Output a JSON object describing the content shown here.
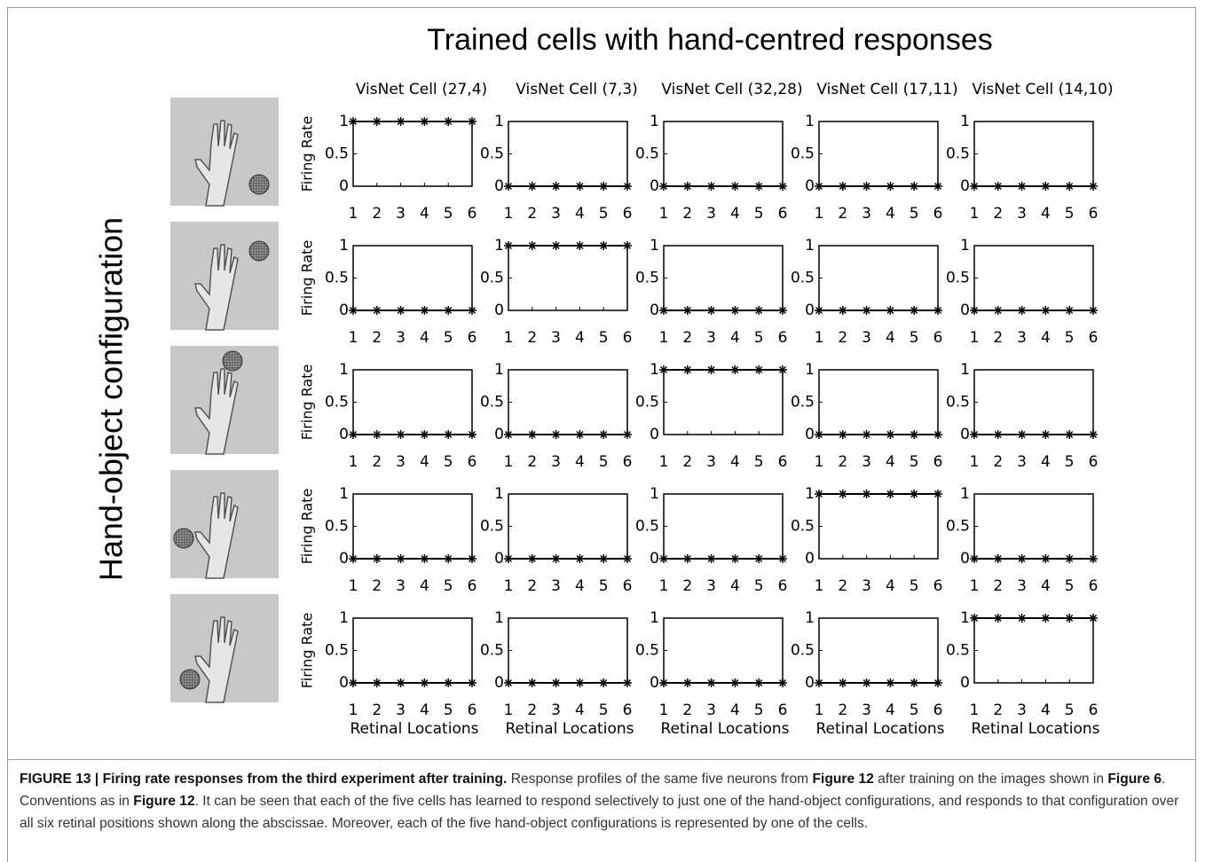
{
  "figure": {
    "title": "Trained cells with hand-centred responses",
    "side_label": "Hand-object configuration",
    "caption": [
      {
        "text": "FIGURE 13 | Firing rate responses from the third experiment after training.",
        "bold": true
      },
      {
        "text": " Response profiles of the same five neurons from ",
        "bold": false
      },
      {
        "text": "Figure 12",
        "bold": true
      },
      {
        "text": " after training on the images shown in ",
        "bold": false
      },
      {
        "text": "Figure 6",
        "bold": true
      },
      {
        "text": ". Conventions as in ",
        "bold": false
      },
      {
        "text": "Figure 12",
        "bold": true
      },
      {
        "text": ". It can be seen that each of the five cells has learned to respond selectively to just one of the hand-object configurations, and responds to that configuration over all six retinal positions shown along the abscissae. Moreover, each of the five hand-object configurations is represented by one of the cells.",
        "bold": false
      }
    ]
  },
  "chart_data": [
    {
      "type": "line",
      "title": "VisNet Cell (27,4)",
      "ylabel": "Firing Rate",
      "x": [
        1,
        2,
        3,
        4,
        5,
        6
      ],
      "values": [
        1,
        1,
        1,
        1,
        1,
        1
      ],
      "color": "#000000",
      "xlim": [
        1,
        6
      ],
      "ylim": [
        0,
        1
      ],
      "xticks": [
        1,
        2,
        3,
        4,
        5,
        6
      ],
      "yticks": [
        0,
        0.5,
        1
      ]
    },
    {
      "type": "line",
      "title": "VisNet Cell (7,3)",
      "x": [
        1,
        2,
        3,
        4,
        5,
        6
      ],
      "values": [
        0,
        0,
        0,
        0,
        0,
        0
      ],
      "color": "#000000",
      "xlim": [
        1,
        6
      ],
      "ylim": [
        0,
        1
      ],
      "xticks": [
        1,
        2,
        3,
        4,
        5,
        6
      ],
      "yticks": [
        0,
        0.5,
        1
      ]
    },
    {
      "type": "line",
      "title": "VisNet Cell (32,28)",
      "x": [
        1,
        2,
        3,
        4,
        5,
        6
      ],
      "values": [
        0,
        0,
        0,
        0,
        0,
        0
      ],
      "color": "#000000",
      "xlim": [
        1,
        6
      ],
      "ylim": [
        0,
        1
      ],
      "xticks": [
        1,
        2,
        3,
        4,
        5,
        6
      ],
      "yticks": [
        0,
        0.5,
        1
      ]
    },
    {
      "type": "line",
      "title": "VisNet Cell (17,11)",
      "x": [
        1,
        2,
        3,
        4,
        5,
        6
      ],
      "values": [
        0,
        0,
        0,
        0,
        0,
        0
      ],
      "color": "#000000",
      "xlim": [
        1,
        6
      ],
      "ylim": [
        0,
        1
      ],
      "xticks": [
        1,
        2,
        3,
        4,
        5,
        6
      ],
      "yticks": [
        0,
        0.5,
        1
      ]
    },
    {
      "type": "line",
      "title": "VisNet Cell (14,10)",
      "x": [
        1,
        2,
        3,
        4,
        5,
        6
      ],
      "values": [
        0,
        0,
        0,
        0,
        0,
        0
      ],
      "color": "#000000",
      "xlim": [
        1,
        6
      ],
      "ylim": [
        0,
        1
      ],
      "xticks": [
        1,
        2,
        3,
        4,
        5,
        6
      ],
      "yticks": [
        0,
        0.5,
        1
      ]
    },
    {
      "type": "line",
      "ylabel": "Firing Rate",
      "x": [
        1,
        2,
        3,
        4,
        5,
        6
      ],
      "values": [
        0,
        0,
        0,
        0,
        0,
        0
      ],
      "color": "#000000",
      "xlim": [
        1,
        6
      ],
      "ylim": [
        0,
        1
      ],
      "xticks": [
        1,
        2,
        3,
        4,
        5,
        6
      ],
      "yticks": [
        0,
        0.5,
        1
      ]
    },
    {
      "type": "line",
      "x": [
        1,
        2,
        3,
        4,
        5,
        6
      ],
      "values": [
        1,
        1,
        1,
        1,
        1,
        1
      ],
      "color": "#000000",
      "xlim": [
        1,
        6
      ],
      "ylim": [
        0,
        1
      ],
      "xticks": [
        1,
        2,
        3,
        4,
        5,
        6
      ],
      "yticks": [
        0,
        0.5,
        1
      ]
    },
    {
      "type": "line",
      "x": [
        1,
        2,
        3,
        4,
        5,
        6
      ],
      "values": [
        0,
        0,
        0,
        0,
        0,
        0
      ],
      "color": "#000000",
      "xlim": [
        1,
        6
      ],
      "ylim": [
        0,
        1
      ],
      "xticks": [
        1,
        2,
        3,
        4,
        5,
        6
      ],
      "yticks": [
        0,
        0.5,
        1
      ]
    },
    {
      "type": "line",
      "x": [
        1,
        2,
        3,
        4,
        5,
        6
      ],
      "values": [
        0,
        0,
        0,
        0,
        0,
        0
      ],
      "color": "#000000",
      "xlim": [
        1,
        6
      ],
      "ylim": [
        0,
        1
      ],
      "xticks": [
        1,
        2,
        3,
        4,
        5,
        6
      ],
      "yticks": [
        0,
        0.5,
        1
      ]
    },
    {
      "type": "line",
      "x": [
        1,
        2,
        3,
        4,
        5,
        6
      ],
      "values": [
        0,
        0,
        0,
        0,
        0,
        0
      ],
      "color": "#000000",
      "xlim": [
        1,
        6
      ],
      "ylim": [
        0,
        1
      ],
      "xticks": [
        1,
        2,
        3,
        4,
        5,
        6
      ],
      "yticks": [
        0,
        0.5,
        1
      ]
    },
    {
      "type": "line",
      "ylabel": "Firing Rate",
      "x": [
        1,
        2,
        3,
        4,
        5,
        6
      ],
      "values": [
        0,
        0,
        0,
        0,
        0,
        0
      ],
      "color": "#000000",
      "xlim": [
        1,
        6
      ],
      "ylim": [
        0,
        1
      ],
      "xticks": [
        1,
        2,
        3,
        4,
        5,
        6
      ],
      "yticks": [
        0,
        0.5,
        1
      ]
    },
    {
      "type": "line",
      "x": [
        1,
        2,
        3,
        4,
        5,
        6
      ],
      "values": [
        0,
        0,
        0,
        0,
        0,
        0
      ],
      "color": "#000000",
      "xlim": [
        1,
        6
      ],
      "ylim": [
        0,
        1
      ],
      "xticks": [
        1,
        2,
        3,
        4,
        5,
        6
      ],
      "yticks": [
        0,
        0.5,
        1
      ]
    },
    {
      "type": "line",
      "x": [
        1,
        2,
        3,
        4,
        5,
        6
      ],
      "values": [
        1,
        1,
        1,
        1,
        1,
        1
      ],
      "color": "#000000",
      "xlim": [
        1,
        6
      ],
      "ylim": [
        0,
        1
      ],
      "xticks": [
        1,
        2,
        3,
        4,
        5,
        6
      ],
      "yticks": [
        0,
        0.5,
        1
      ]
    },
    {
      "type": "line",
      "x": [
        1,
        2,
        3,
        4,
        5,
        6
      ],
      "values": [
        0,
        0,
        0,
        0,
        0,
        0
      ],
      "color": "#000000",
      "xlim": [
        1,
        6
      ],
      "ylim": [
        0,
        1
      ],
      "xticks": [
        1,
        2,
        3,
        4,
        5,
        6
      ],
      "yticks": [
        0,
        0.5,
        1
      ]
    },
    {
      "type": "line",
      "x": [
        1,
        2,
        3,
        4,
        5,
        6
      ],
      "values": [
        0,
        0,
        0,
        0,
        0,
        0
      ],
      "color": "#000000",
      "xlim": [
        1,
        6
      ],
      "ylim": [
        0,
        1
      ],
      "xticks": [
        1,
        2,
        3,
        4,
        5,
        6
      ],
      "yticks": [
        0,
        0.5,
        1
      ]
    },
    {
      "type": "line",
      "ylabel": "Firing Rate",
      "x": [
        1,
        2,
        3,
        4,
        5,
        6
      ],
      "values": [
        0,
        0,
        0,
        0,
        0,
        0
      ],
      "color": "#000000",
      "xlim": [
        1,
        6
      ],
      "ylim": [
        0,
        1
      ],
      "xticks": [
        1,
        2,
        3,
        4,
        5,
        6
      ],
      "yticks": [
        0,
        0.5,
        1
      ]
    },
    {
      "type": "line",
      "x": [
        1,
        2,
        3,
        4,
        5,
        6
      ],
      "values": [
        0,
        0,
        0,
        0,
        0,
        0
      ],
      "color": "#000000",
      "xlim": [
        1,
        6
      ],
      "ylim": [
        0,
        1
      ],
      "xticks": [
        1,
        2,
        3,
        4,
        5,
        6
      ],
      "yticks": [
        0,
        0.5,
        1
      ]
    },
    {
      "type": "line",
      "x": [
        1,
        2,
        3,
        4,
        5,
        6
      ],
      "values": [
        0,
        0,
        0,
        0,
        0,
        0
      ],
      "color": "#000000",
      "xlim": [
        1,
        6
      ],
      "ylim": [
        0,
        1
      ],
      "xticks": [
        1,
        2,
        3,
        4,
        5,
        6
      ],
      "yticks": [
        0,
        0.5,
        1
      ]
    },
    {
      "type": "line",
      "x": [
        1,
        2,
        3,
        4,
        5,
        6
      ],
      "values": [
        1,
        1,
        1,
        1,
        1,
        1
      ],
      "color": "#000000",
      "xlim": [
        1,
        6
      ],
      "ylim": [
        0,
        1
      ],
      "xticks": [
        1,
        2,
        3,
        4,
        5,
        6
      ],
      "yticks": [
        0,
        0.5,
        1
      ]
    },
    {
      "type": "line",
      "x": [
        1,
        2,
        3,
        4,
        5,
        6
      ],
      "values": [
        0,
        0,
        0,
        0,
        0,
        0
      ],
      "color": "#000000",
      "xlim": [
        1,
        6
      ],
      "ylim": [
        0,
        1
      ],
      "xticks": [
        1,
        2,
        3,
        4,
        5,
        6
      ],
      "yticks": [
        0,
        0.5,
        1
      ]
    },
    {
      "type": "line",
      "ylabel": "Firing Rate",
      "xlabel": "Retinal Locations",
      "x": [
        1,
        2,
        3,
        4,
        5,
        6
      ],
      "values": [
        0,
        0,
        0,
        0,
        0,
        0
      ],
      "color": "#000000",
      "xlim": [
        1,
        6
      ],
      "ylim": [
        0,
        1
      ],
      "xticks": [
        1,
        2,
        3,
        4,
        5,
        6
      ],
      "yticks": [
        0,
        0.5,
        1
      ]
    },
    {
      "type": "line",
      "xlabel": "Retinal Locations",
      "x": [
        1,
        2,
        3,
        4,
        5,
        6
      ],
      "values": [
        0,
        0,
        0,
        0,
        0,
        0
      ],
      "color": "#000000",
      "xlim": [
        1,
        6
      ],
      "ylim": [
        0,
        1
      ],
      "xticks": [
        1,
        2,
        3,
        4,
        5,
        6
      ],
      "yticks": [
        0,
        0.5,
        1
      ]
    },
    {
      "type": "line",
      "xlabel": "Retinal Locations",
      "x": [
        1,
        2,
        3,
        4,
        5,
        6
      ],
      "values": [
        0,
        0,
        0,
        0,
        0,
        0
      ],
      "color": "#000000",
      "xlim": [
        1,
        6
      ],
      "ylim": [
        0,
        1
      ],
      "xticks": [
        1,
        2,
        3,
        4,
        5,
        6
      ],
      "yticks": [
        0,
        0.5,
        1
      ]
    },
    {
      "type": "line",
      "xlabel": "Retinal Locations",
      "x": [
        1,
        2,
        3,
        4,
        5,
        6
      ],
      "values": [
        0,
        0,
        0,
        0,
        0,
        0
      ],
      "color": "#000000",
      "xlim": [
        1,
        6
      ],
      "ylim": [
        0,
        1
      ],
      "xticks": [
        1,
        2,
        3,
        4,
        5,
        6
      ],
      "yticks": [
        0,
        0.5,
        1
      ]
    },
    {
      "type": "line",
      "xlabel": "Retinal Locations",
      "x": [
        1,
        2,
        3,
        4,
        5,
        6
      ],
      "values": [
        1,
        1,
        1,
        1,
        1,
        1
      ],
      "color": "#000000",
      "xlim": [
        1,
        6
      ],
      "ylim": [
        0,
        1
      ],
      "xticks": [
        1,
        2,
        3,
        4,
        5,
        6
      ],
      "yticks": [
        0,
        0.5,
        1
      ]
    }
  ]
}
